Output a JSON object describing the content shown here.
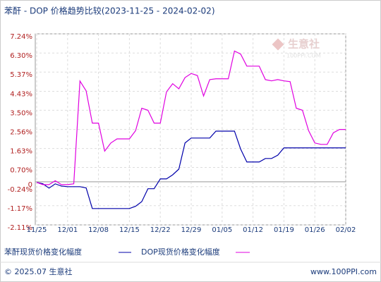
{
  "chart_data": {
    "type": "line",
    "title": "苯酐 - DOP 价格趋势比较(2023-11-25 - 2024-02-02)",
    "categories": [
      "11/25",
      null,
      null,
      null,
      null,
      "12/01",
      null,
      null,
      null,
      null,
      "12/08",
      null,
      null,
      null,
      null,
      "12/15",
      null,
      null,
      null,
      null,
      "12/22",
      null,
      null,
      null,
      null,
      "12/29",
      null,
      null,
      null,
      null,
      "01/05",
      null,
      null,
      null,
      null,
      "01/12",
      null,
      null,
      null,
      null,
      "01/19",
      null,
      null,
      null,
      null,
      "01/26",
      null,
      null,
      null,
      null,
      "02/02"
    ],
    "series": [
      {
        "name": "苯酐现货价格变化幅度",
        "color": "#0000aa",
        "values": [
          -0.03,
          -0.1,
          -0.31,
          -0.1,
          -0.21,
          -0.24,
          -0.24,
          -0.24,
          -0.3,
          -1.31,
          -1.31,
          -1.31,
          -1.31,
          -1.31,
          -1.31,
          -1.31,
          -1.2,
          -0.97,
          -0.34,
          -0.34,
          0.14,
          0.14,
          0.34,
          0.62,
          1.9,
          2.14,
          2.14,
          2.14,
          2.14,
          2.48,
          2.48,
          2.48,
          2.48,
          1.6,
          0.97,
          0.97,
          0.97,
          1.14,
          1.14,
          1.3,
          1.66,
          1.66,
          1.66,
          1.66,
          1.66,
          1.66,
          1.66,
          1.66,
          1.66,
          1.66,
          1.66
        ]
      },
      {
        "name": "DOP现货价格变化幅度",
        "color": "#e000e0",
        "values": [
          -0.03,
          -0.14,
          -0.14,
          0.05,
          -0.14,
          -0.14,
          -0.1,
          4.93,
          4.45,
          2.87,
          2.87,
          1.5,
          1.9,
          2.1,
          2.1,
          2.1,
          2.5,
          3.6,
          3.5,
          2.87,
          2.87,
          4.4,
          4.8,
          4.55,
          5.1,
          5.3,
          5.2,
          4.2,
          5.0,
          5.04,
          5.04,
          5.04,
          6.4,
          6.25,
          5.66,
          5.66,
          5.66,
          5.0,
          4.94,
          5.0,
          4.94,
          4.9,
          3.6,
          3.5,
          2.5,
          1.9,
          1.83,
          1.83,
          2.4,
          2.56,
          2.56
        ]
      }
    ],
    "ylim": [
      -2.11,
      7.24
    ],
    "yticks": [
      {
        "value": 7.24,
        "label": "7.24%"
      },
      {
        "value": 6.3,
        "label": "6.30%"
      },
      {
        "value": 5.37,
        "label": "5.37%"
      },
      {
        "value": 4.43,
        "label": "4.43%"
      },
      {
        "value": 3.5,
        "label": "3.50%"
      },
      {
        "value": 2.56,
        "label": "2.56%"
      },
      {
        "value": 1.63,
        "label": "1.63%"
      },
      {
        "value": 0.7,
        "label": "0.70%"
      },
      0,
      {
        "value": -0.24,
        "label": "-0.24%"
      },
      {
        "value": -1.17,
        "label": "-1.17%"
      },
      {
        "value": -2.11,
        "label": "-2.11%"
      }
    ],
    "grid": true,
    "legend": "bottom",
    "watermark_title": "生意社",
    "watermark_url": "100PPI.COM",
    "copyright": "© 2025.07 生意社",
    "website": "www.100PPI.com"
  }
}
